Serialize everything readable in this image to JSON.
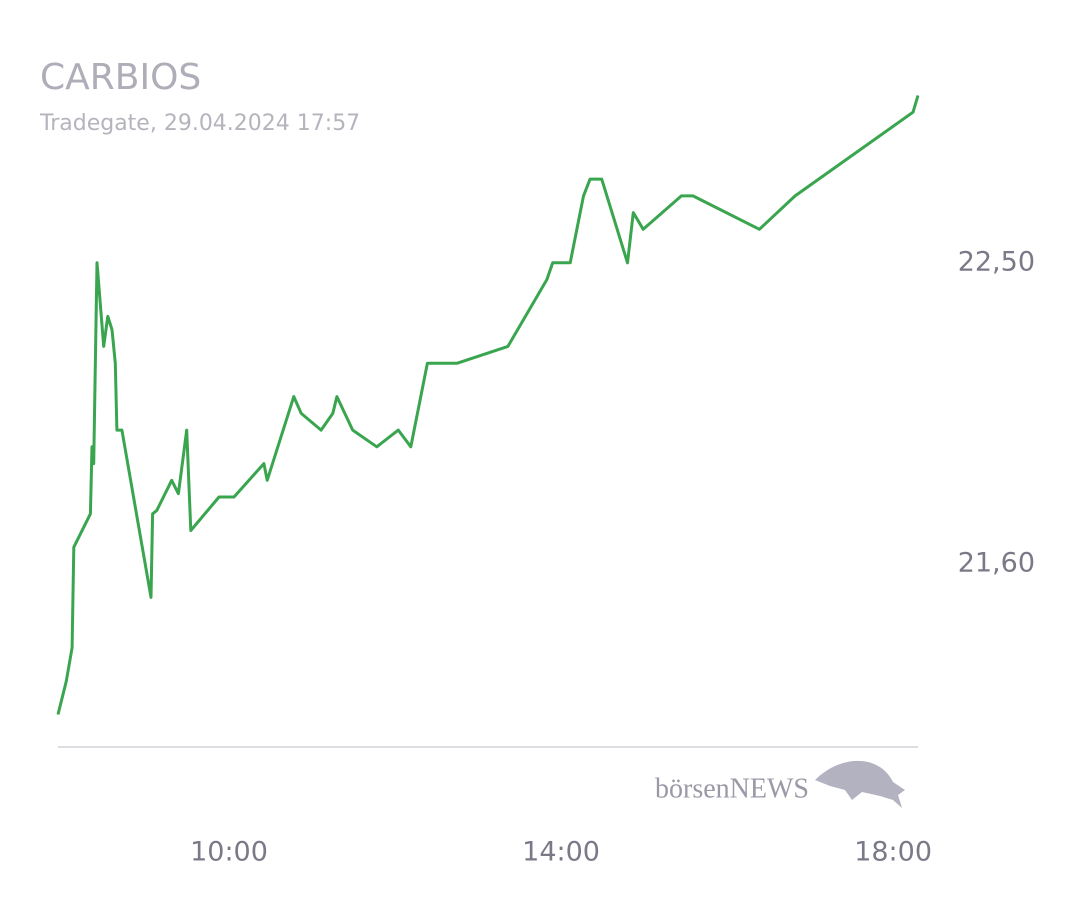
{
  "chart_data": {
    "type": "line",
    "title": "CARBIOS",
    "subtitle": "Tradegate, 29.04.2024 17:57",
    "logo": "börsenNEWS",
    "x": [
      7.94,
      8.04,
      8.11,
      8.13,
      8.33,
      8.35,
      8.37,
      8.41,
      8.49,
      8.54,
      8.59,
      8.63,
      8.65,
      8.71,
      9.06,
      9.08,
      9.13,
      9.31,
      9.39,
      9.49,
      9.54,
      9.88,
      10.06,
      10.42,
      10.46,
      10.78,
      10.87,
      11.11,
      11.25,
      11.3,
      11.49,
      11.78,
      12.04,
      12.19,
      12.39,
      12.75,
      13.36,
      13.83,
      13.9,
      14.11,
      14.27,
      14.35,
      14.49,
      14.8,
      14.87,
      14.99,
      15.45,
      15.59,
      16.39,
      16.82,
      18.24,
      18.3
    ],
    "series": [
      {
        "color": "#3aa54f",
        "values": [
          21.15,
          21.25,
          21.35,
          21.65,
          21.75,
          21.95,
          21.9,
          22.5,
          22.25,
          22.34,
          22.3,
          22.2,
          22.0,
          22.0,
          21.5,
          21.75,
          21.76,
          21.85,
          21.81,
          22.0,
          21.7,
          21.8,
          21.8,
          21.9,
          21.85,
          22.1,
          22.05,
          22.0,
          22.05,
          22.1,
          22.0,
          21.95,
          22.0,
          21.95,
          22.2,
          22.2,
          22.25,
          22.45,
          22.5,
          22.5,
          22.7,
          22.75,
          22.75,
          22.5,
          22.65,
          22.6,
          22.7,
          22.7,
          22.6,
          22.7,
          22.95,
          23.0
        ]
      }
    ],
    "xlim": [
      7.94,
      18.3
    ],
    "ylim": [
      21.05,
      23.1
    ],
    "xticks": [
      {
        "value": 10,
        "label": "10:00"
      },
      {
        "value": 14,
        "label": "14:00"
      },
      {
        "value": 18,
        "label": "18:00"
      }
    ],
    "yticks": [
      {
        "value": 21.6,
        "label": "21,60"
      },
      {
        "value": 22.5,
        "label": "22,50"
      }
    ]
  }
}
